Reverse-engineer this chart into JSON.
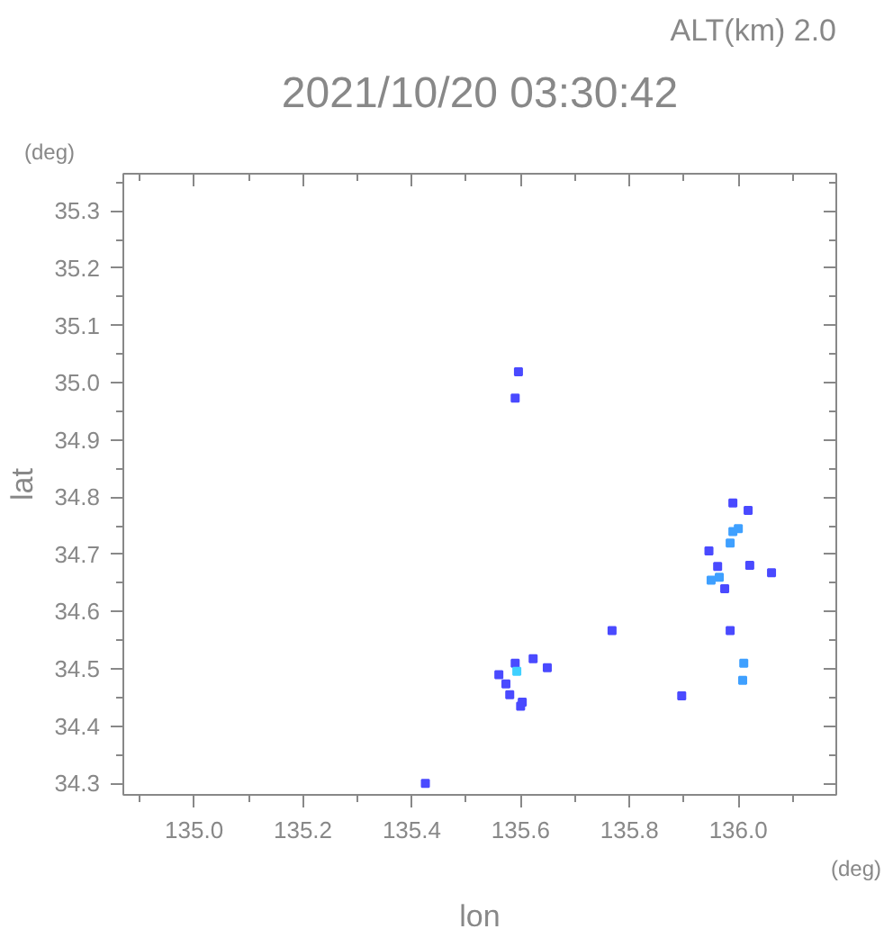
{
  "chart_data": {
    "type": "scatter",
    "title": "2021/10/20 03:30:42",
    "subtitle": "ALT(km) 2.0",
    "xlabel": "lon",
    "ylabel": "lat",
    "annotations": [
      "(deg)",
      "(deg)"
    ],
    "marker": "square",
    "grid": false,
    "xlim": [
      134.87,
      136.18
    ],
    "ylim": [
      34.28,
      35.365
    ],
    "xticks": [
      {
        "value": 134.9,
        "label": null
      },
      {
        "value": 135.0,
        "label": "135.0"
      },
      {
        "value": 135.1,
        "label": null
      },
      {
        "value": 135.2,
        "label": "135.2"
      },
      {
        "value": 135.3,
        "label": null
      },
      {
        "value": 135.4,
        "label": "135.4"
      },
      {
        "value": 135.5,
        "label": null
      },
      {
        "value": 135.6,
        "label": "135.6"
      },
      {
        "value": 135.7,
        "label": null
      },
      {
        "value": 135.8,
        "label": "135.8"
      },
      {
        "value": 135.9,
        "label": null
      },
      {
        "value": 136.0,
        "label": "136.0"
      },
      {
        "value": 136.1,
        "label": null
      }
    ],
    "yticks": [
      {
        "value": 34.3,
        "label": "34.3"
      },
      {
        "value": 34.35,
        "label": null
      },
      {
        "value": 34.4,
        "label": "34.4"
      },
      {
        "value": 34.45,
        "label": null
      },
      {
        "value": 34.5,
        "label": "34.5"
      },
      {
        "value": 34.55,
        "label": null
      },
      {
        "value": 34.6,
        "label": "34.6"
      },
      {
        "value": 34.65,
        "label": null
      },
      {
        "value": 34.7,
        "label": "34.7"
      },
      {
        "value": 34.75,
        "label": null
      },
      {
        "value": 34.8,
        "label": "34.8"
      },
      {
        "value": 34.85,
        "label": null
      },
      {
        "value": 34.9,
        "label": "34.9"
      },
      {
        "value": 34.95,
        "label": null
      },
      {
        "value": 35.0,
        "label": "35.0"
      },
      {
        "value": 35.05,
        "label": null
      },
      {
        "value": 35.1,
        "label": "35.1"
      },
      {
        "value": 35.15,
        "label": null
      },
      {
        "value": 35.2,
        "label": "35.2"
      },
      {
        "value": 35.25,
        "label": null
      },
      {
        "value": 35.3,
        "label": "35.3"
      },
      {
        "value": 35.35,
        "label": null
      }
    ],
    "series": [
      {
        "x": [
          135.596,
          135.59,
          135.573,
          135.58,
          135.603,
          135.623,
          135.649,
          135.56,
          135.59,
          135.6,
          135.768,
          135.896,
          135.99,
          136.018,
          136.0,
          135.946,
          135.962,
          135.95,
          135.975,
          136.021,
          136.061,
          135.985,
          136.01,
          135.425
        ],
        "values": [
          35.019,
          34.973,
          34.474,
          34.455,
          34.442,
          34.518,
          34.502,
          34.49,
          34.51,
          34.435,
          34.567,
          34.453,
          34.79,
          34.777,
          34.745,
          34.706,
          34.679,
          34.655,
          34.64,
          34.681,
          34.668,
          34.567,
          34.51,
          34.3
        ],
        "colors": [
          "#4a4aff",
          "#4a4aff",
          "#4a4aff",
          "#4a4aff",
          "#4a4aff",
          "#4a4aff",
          "#4a4aff",
          "#4a4aff",
          "#4a4aff",
          "#4a4aff",
          "#4a4aff",
          "#4a4aff",
          "#4a4aff",
          "#4a4aff",
          "#3fa0ff",
          "#4a4aff",
          "#4a4aff",
          "#3fa0ff",
          "#4a4aff",
          "#4a4aff",
          "#4a4aff",
          "#4a4aff",
          "#3fa0ff",
          "#4a4aff"
        ]
      },
      {
        "x": [
          135.593,
          135.99,
          135.985,
          135.965,
          136.008
        ],
        "values": [
          34.496,
          34.74,
          34.72,
          34.66,
          34.48
        ],
        "colors": [
          "#3fd0ff",
          "#3fa0ff",
          "#3fa0ff",
          "#3fa0ff",
          "#3fa0ff"
        ]
      }
    ]
  }
}
